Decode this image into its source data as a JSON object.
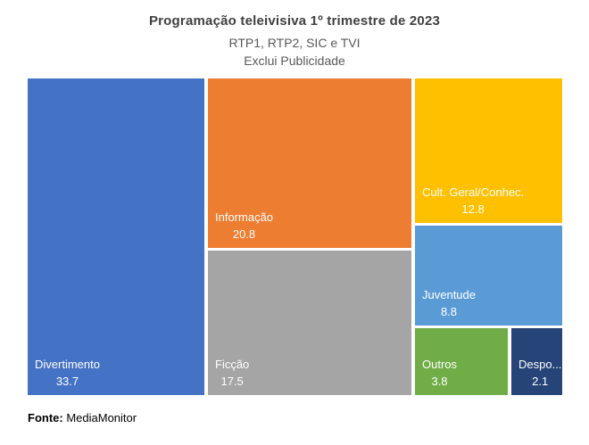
{
  "chart_data": {
    "type": "treemap",
    "title": "Programação teleivisiva 1º trimestre de 2023",
    "subtitles": [
      "RTP1, RTP2, SIC e TVI",
      "Exclui Publicidade"
    ],
    "categories": [
      "Divertimento",
      "Informação",
      "Ficção",
      "Cult. Geral/Conhec.",
      "Juventude",
      "Outros",
      "Despo..."
    ],
    "values": [
      33.7,
      20.8,
      17.5,
      12.8,
      8.8,
      3.8,
      2.1
    ],
    "colors": [
      "#4472C4",
      "#ED7D31",
      "#A5A5A5",
      "#FFC000",
      "#5B9BD5",
      "#70AD47",
      "#264478"
    ],
    "label_text_color": "#FFFFFF",
    "legend": "none",
    "gridlines": "off"
  },
  "footer": {
    "source_label": "Fonte:",
    "source_value": " MediaMonitor"
  }
}
